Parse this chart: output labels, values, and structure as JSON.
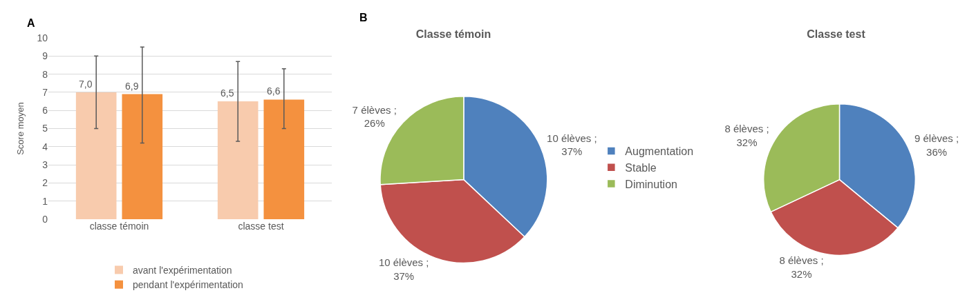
{
  "chart_data": [
    {
      "type": "bar",
      "annotations": [
        "A"
      ],
      "ylabel": "Score moyen",
      "categories": [
        "classe témoin",
        "classe test"
      ],
      "series": [
        {
          "name": "avant l'expérimentation",
          "color": "#f8cbad",
          "values": [
            7.0,
            6.5
          ],
          "value_labels": [
            "7,0",
            "6,5"
          ],
          "errors": [
            [
              5.0,
              9.0
            ],
            [
              4.3,
              8.7
            ]
          ]
        },
        {
          "name": "pendant l'expérimentation",
          "color": "#f4913f",
          "values": [
            6.9,
            6.6
          ],
          "value_labels": [
            "6,9",
            "6,6"
          ],
          "errors": [
            [
              4.2,
              9.5
            ],
            [
              5.0,
              8.3
            ]
          ]
        }
      ],
      "ylim": [
        0,
        10
      ],
      "yticks": [
        0,
        1,
        2,
        3,
        4,
        5,
        6,
        7,
        8,
        9,
        10
      ],
      "grid": "y",
      "legend": "bottom"
    },
    {
      "type": "pie",
      "title": "Classe témoin",
      "annotations": [
        "B"
      ],
      "categories": [
        "Augmentation",
        "Stable",
        "Diminution"
      ],
      "values": [
        10,
        10,
        7
      ],
      "value_labels": [
        "10 élèves ; 37%",
        "10 élèves ; 37%",
        "7 élèves ; 26%"
      ],
      "colors": [
        "#4f81bd",
        "#c0504d",
        "#9bbb59"
      ],
      "legend": "right"
    },
    {
      "type": "pie",
      "title": "Classe test",
      "categories": [
        null,
        null,
        null
      ],
      "values": [
        9,
        8,
        8
      ],
      "value_labels": [
        "9 élèves ; 36%",
        "8 élèves ; 32%",
        "8 élèves ; 32%"
      ],
      "colors": [
        "#4f81bd",
        "#c0504d",
        "#9bbb59"
      ],
      "legend": false
    }
  ]
}
